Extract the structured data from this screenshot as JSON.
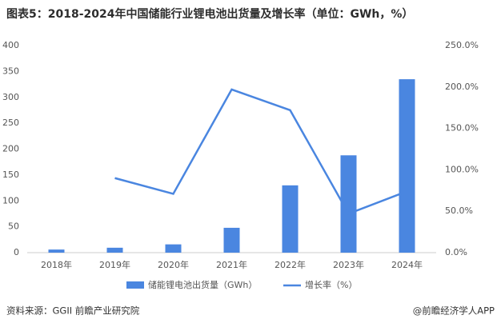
{
  "chart_data": {
    "type": "bar-line",
    "title": "图表5：2018-2024年中国储能行业锂电池出货量及增长率（单位：GWh，%）",
    "categories": [
      "2018年",
      "2019年",
      "2020年",
      "2021年",
      "2022年",
      "2023年",
      "2024年"
    ],
    "series": [
      {
        "name": "储能锂电池出货量（GWh）",
        "type": "bar",
        "color": "#4a86e0",
        "values": [
          6,
          9.5,
          16,
          48,
          130,
          188,
          335
        ]
      },
      {
        "name": "增长率（%）",
        "type": "line",
        "axis": "y2",
        "color": "#4a86e0",
        "values": [
          null,
          90,
          71,
          197,
          172,
          47,
          74
        ]
      }
    ],
    "ylim": [
      0,
      400
    ],
    "yticks": [
      0,
      50,
      100,
      150,
      200,
      250,
      300,
      350,
      400
    ],
    "y2lim": [
      0,
      250
    ],
    "y2ticks": [
      {
        "value": 0,
        "label": "0.0%"
      },
      {
        "value": 50,
        "label": "50.0%"
      },
      {
        "value": 100,
        "label": "100.0%"
      },
      {
        "value": 150,
        "label": "150.0%"
      },
      {
        "value": 200,
        "label": "200.0%"
      },
      {
        "value": 250,
        "label": "250.0%"
      }
    ],
    "grid": false,
    "legend": "bottom",
    "source": "资料来源：GGII  前瞻产业研究院",
    "credit": "@前瞻经济学人APP"
  }
}
